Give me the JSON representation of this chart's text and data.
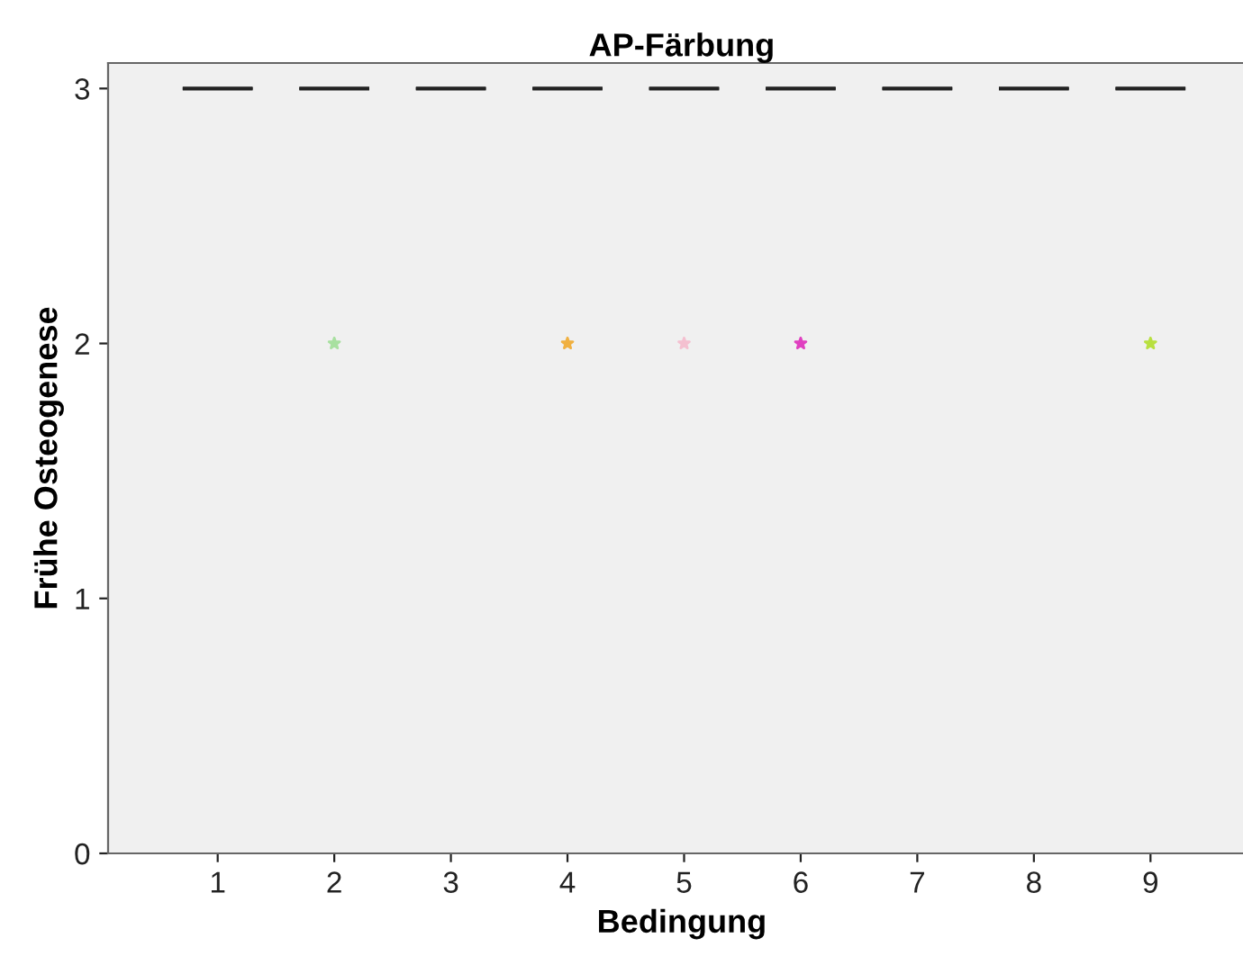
{
  "chart_data": {
    "type": "box",
    "title": "AP-Färbung",
    "xlabel": "Bedingung",
    "ylabel": "Frühe Osteogenese",
    "categories": [
      "1",
      "2",
      "3",
      "4",
      "5",
      "6",
      "7",
      "8",
      "9"
    ],
    "boxes": [
      {
        "low": 3,
        "q1": 3,
        "median": 3,
        "q3": 3,
        "high": 3
      },
      {
        "low": 3,
        "q1": 3,
        "median": 3,
        "q3": 3,
        "high": 3
      },
      {
        "low": 3,
        "q1": 3,
        "median": 3,
        "q3": 3,
        "high": 3
      },
      {
        "low": 3,
        "q1": 3,
        "median": 3,
        "q3": 3,
        "high": 3
      },
      {
        "low": 3,
        "q1": 3,
        "median": 3,
        "q3": 3,
        "high": 3
      },
      {
        "low": 3,
        "q1": 3,
        "median": 3,
        "q3": 3,
        "high": 3
      },
      {
        "low": 3,
        "q1": 3,
        "median": 3,
        "q3": 3,
        "high": 3
      },
      {
        "low": 3,
        "q1": 3,
        "median": 3,
        "q3": 3,
        "high": 3
      },
      {
        "low": 3,
        "q1": 3,
        "median": 3,
        "q3": 3,
        "high": 3
      }
    ],
    "series": [
      {
        "type": "scatter",
        "x": [
          "2",
          "4",
          "5",
          "6",
          "9"
        ],
        "values": [
          2,
          2,
          2,
          2,
          2
        ],
        "colors": [
          "#a8e0a0",
          "#f0b040",
          "#f4c0d0",
          "#e040c0",
          "#b8e040"
        ],
        "marker": "star"
      }
    ],
    "ylim": [
      0,
      3.1
    ],
    "yticks": [
      0,
      1,
      2,
      3
    ],
    "grid": false,
    "legend": false
  }
}
